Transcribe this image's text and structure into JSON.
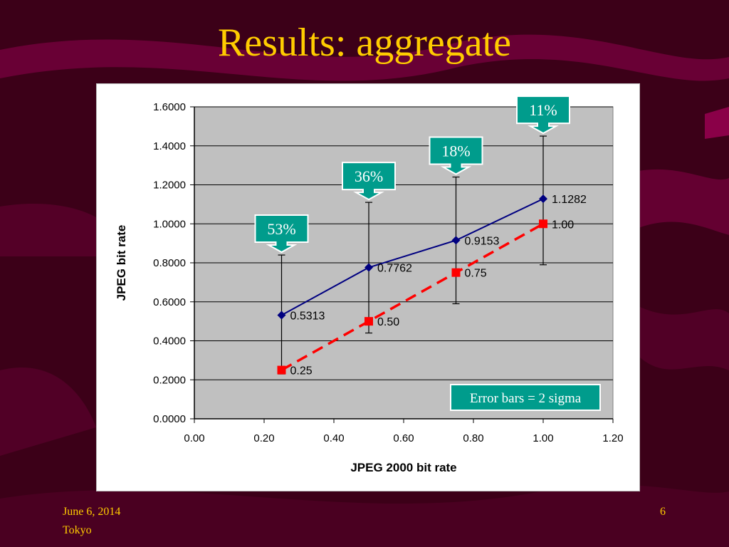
{
  "slide": {
    "title": "Results: aggregate",
    "footer_date": "June 6, 2014",
    "footer_place": "Tokyo",
    "page_number": "6"
  },
  "colors": {
    "background": "#3c0018",
    "swoosh": "#6e0038",
    "title": "#ffcc00",
    "plot_area": "#c0c0c0",
    "series_jpeg": "#000080",
    "series_j2k": "#ff0000",
    "callout": "#009c8c"
  },
  "chart_data": {
    "type": "line",
    "xlabel": "JPEG 2000 bit rate",
    "ylabel": "JPEG bit rate",
    "xlim": [
      0,
      1.2
    ],
    "ylim": [
      0,
      1.6
    ],
    "xticks": [
      "0.00",
      "0.20",
      "0.40",
      "0.60",
      "0.80",
      "1.00",
      "1.20"
    ],
    "yticks": [
      "0.0000",
      "0.2000",
      "0.4000",
      "0.6000",
      "0.8000",
      "1.0000",
      "1.2000",
      "1.4000",
      "1.6000"
    ],
    "grid": "horizontal",
    "series": [
      {
        "key": "jpeg",
        "marker": "diamond",
        "line": "solid",
        "color": "#000080",
        "x": [
          0.25,
          0.5,
          0.75,
          1.0
        ],
        "y": [
          0.5313,
          0.7762,
          0.9153,
          1.1282
        ],
        "labels": [
          "0.5313",
          "0.7762",
          "0.9153",
          "1.1282"
        ],
        "error_low": [
          0.23,
          0.44,
          0.59,
          0.79
        ],
        "error_high": [
          0.84,
          1.11,
          1.24,
          1.45
        ]
      },
      {
        "key": "j2k",
        "marker": "square",
        "line": "dashed",
        "color": "#ff0000",
        "x": [
          0.25,
          0.5,
          0.75,
          1.0
        ],
        "y": [
          0.25,
          0.5,
          0.75,
          1.0
        ],
        "labels": [
          "0.25",
          "0.50",
          "0.75",
          "1.00"
        ]
      }
    ],
    "callouts": [
      {
        "text": "53%",
        "x": 0.25
      },
      {
        "text": "36%",
        "x": 0.5
      },
      {
        "text": "18%",
        "x": 0.75
      },
      {
        "text": "11%",
        "x": 1.0
      }
    ],
    "note": "Error bars = 2 sigma"
  }
}
